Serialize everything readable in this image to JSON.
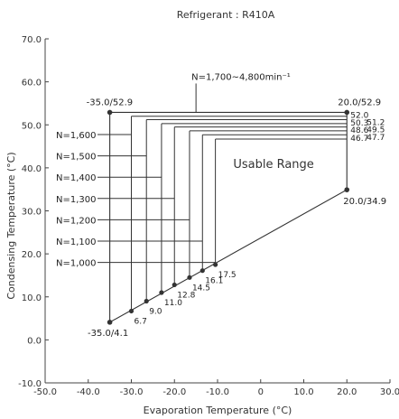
{
  "chart_data": {
    "type": "line",
    "title": "Refrigerant : R410A",
    "xlabel": "Evaporation Temperature (°C)",
    "ylabel": "Condensing Temperature (°C)",
    "xlim": [
      -50,
      30
    ],
    "ylim": [
      -10,
      70
    ],
    "x_ticks": [
      -50,
      -40,
      -30,
      -20,
      -10,
      0,
      10,
      20,
      30
    ],
    "x_tick_labels": [
      "-50.0",
      "-40.0",
      "-30.0",
      "-20.0",
      "-10.0",
      "0",
      "10.0",
      "20.0",
      "30.0"
    ],
    "y_ticks": [
      -10,
      0,
      10,
      20,
      30,
      40,
      50,
      60,
      70
    ],
    "y_tick_labels": [
      "-10.0",
      "0.0",
      "10.0",
      "20.0",
      "30.0",
      "40.0",
      "50.0",
      "60.0",
      "70.0"
    ],
    "grid": false,
    "region_label": "Usable Range",
    "envelope_corners": [
      {
        "x": -35.0,
        "y": 52.9,
        "label": "-35.0/52.9"
      },
      {
        "x": 20.0,
        "y": 52.9,
        "label": "20.0/52.9"
      },
      {
        "x": 20.0,
        "y": 34.9,
        "label": "20.0/34.9"
      },
      {
        "x": -35.0,
        "y": 4.1,
        "label": "-35.0/4.1"
      }
    ],
    "speed_limits": [
      {
        "label": "N=1,700~4,800min⁻¹",
        "evap": -35.0,
        "cond_top": 52.9,
        "cond_bottom": 4.1
      },
      {
        "label": "N=1,600",
        "evap": -30.0,
        "cond_top": 52.0,
        "cond_bottom": 6.7,
        "bottom_label": "6.7",
        "right_label": "52.0"
      },
      {
        "label": "N=1,500",
        "evap": -26.5,
        "cond_top": 51.2,
        "cond_bottom": 9.0,
        "bottom_label": "9.0",
        "right_label": "51.2"
      },
      {
        "label": "N=1,400",
        "evap": -23.0,
        "cond_top": 50.3,
        "cond_bottom": 11.0,
        "bottom_label": "11.0",
        "right_label": "50.3"
      },
      {
        "label": "N=1,300",
        "evap": -20.0,
        "cond_top": 49.5,
        "cond_bottom": 12.8,
        "bottom_label": "12.8",
        "right_label": "49.5"
      },
      {
        "label": "N=1,200",
        "evap": -16.5,
        "cond_top": 48.6,
        "cond_bottom": 14.5,
        "bottom_label": "14.5",
        "right_label": "48.6"
      },
      {
        "label": "N=1,100",
        "evap": -13.5,
        "cond_top": 47.7,
        "cond_bottom": 16.1,
        "bottom_label": "16.1",
        "right_label": "47.7"
      },
      {
        "label": "N=1,000",
        "evap": -10.5,
        "cond_top": 46.7,
        "cond_bottom": 17.5,
        "bottom_label": "17.5",
        "right_label": "46.7"
      }
    ]
  }
}
